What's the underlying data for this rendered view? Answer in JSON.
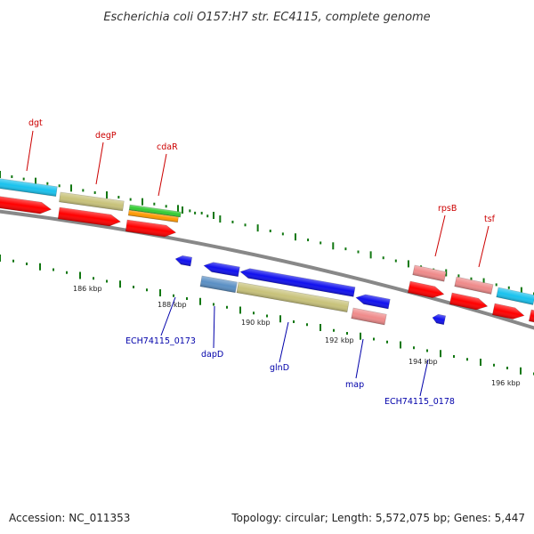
{
  "title": "Escherichia coli O157:H7 str. EC4115, complete genome",
  "footer": {
    "accession": "Accession: NC_011353",
    "summary": "Topology: circular; Length: 5,572,075 bp; Genes: 5,447"
  },
  "scale_labels": [
    "186 kbp",
    "188 kbp",
    "190 kbp",
    "192 kbp",
    "194 kbp",
    "196 kbp"
  ],
  "labels_top": [
    "dgt",
    "degP",
    "cdaR",
    "rpsB",
    "tsf"
  ],
  "labels_bottom": [
    "ECH74115_0173",
    "dapD",
    "glnD",
    "map",
    "ECH74115_0178"
  ],
  "colors": {
    "backbone": "#808080",
    "label_top": "#cc0000",
    "label_bottom": "#0000aa",
    "tick": "#117711",
    "red": "#ff0000",
    "blue": "#1010ee",
    "cyan": "#19c2ee",
    "khaki": "#c8c27a",
    "pink": "#ef8a8a",
    "green": "#33cc33",
    "orange": "#ff9900",
    "steelblue": "#5a8fc4"
  }
}
